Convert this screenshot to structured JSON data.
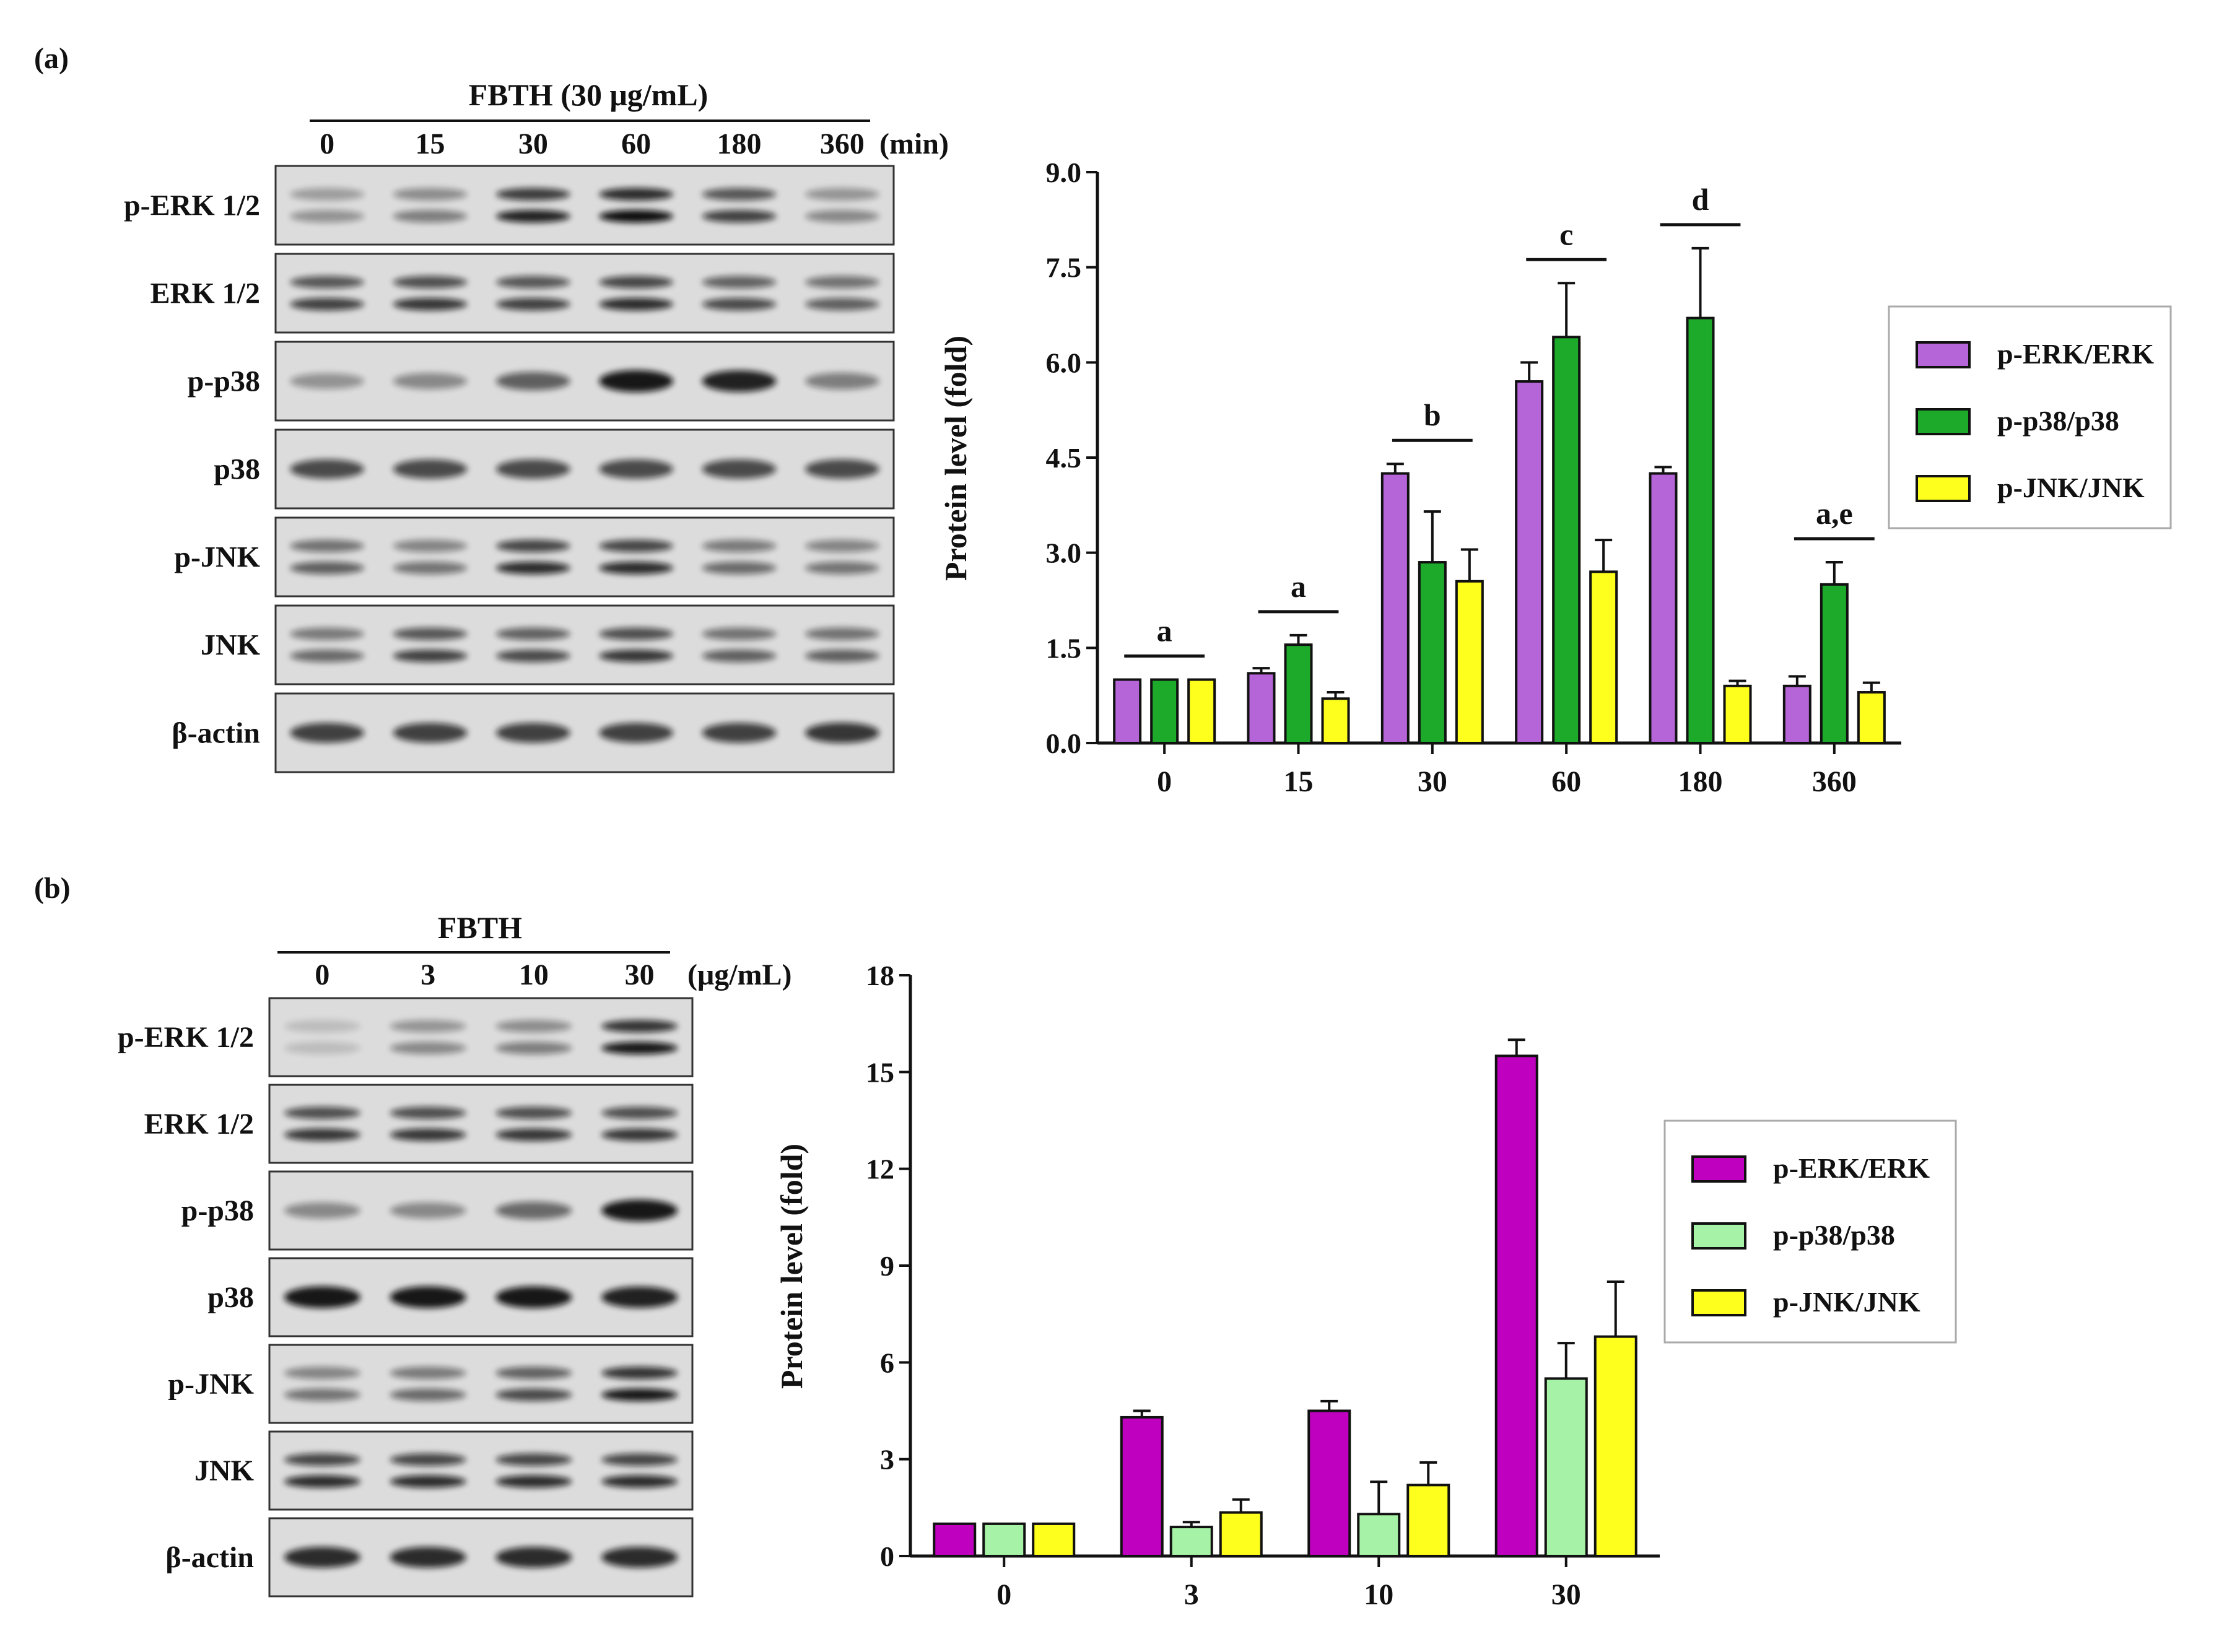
{
  "panels": {
    "a": {
      "label": "(a)",
      "blot": {
        "treatment": "FBTH (30 μg/mL)",
        "lanes": [
          "0",
          "15",
          "30",
          "60",
          "180",
          "360"
        ],
        "unit": "(min)",
        "rows": [
          "p-ERK 1/2",
          "ERK 1/2",
          "p-p38",
          "p38",
          "p-JNK",
          "JNK",
          "β-actin"
        ],
        "intensity": [
          [
            0.35,
            0.45,
            0.9,
            1.0,
            0.75,
            0.4
          ],
          [
            0.75,
            0.8,
            0.75,
            0.85,
            0.7,
            0.6
          ],
          [
            0.35,
            0.4,
            0.6,
            0.95,
            0.9,
            0.45
          ],
          [
            0.7,
            0.7,
            0.7,
            0.7,
            0.7,
            0.7
          ],
          [
            0.6,
            0.5,
            0.85,
            0.85,
            0.55,
            0.5
          ],
          [
            0.55,
            0.75,
            0.7,
            0.8,
            0.6,
            0.6
          ],
          [
            0.75,
            0.75,
            0.75,
            0.75,
            0.75,
            0.8
          ]
        ],
        "double_band": [
          true,
          true,
          false,
          false,
          true,
          true,
          false
        ]
      }
    },
    "b": {
      "label": "(b)",
      "blot": {
        "treatment": "FBTH",
        "lanes": [
          "0",
          "3",
          "10",
          "30"
        ],
        "unit": "(μg/mL)",
        "rows": [
          "p-ERK 1/2",
          "ERK 1/2",
          "p-p38",
          "p38",
          "p-JNK",
          "JNK",
          "β-actin"
        ],
        "intensity": [
          [
            0.15,
            0.4,
            0.45,
            0.95
          ],
          [
            0.8,
            0.8,
            0.8,
            0.8
          ],
          [
            0.4,
            0.4,
            0.55,
            0.95
          ],
          [
            0.95,
            0.95,
            0.95,
            0.9
          ],
          [
            0.5,
            0.55,
            0.7,
            0.95
          ],
          [
            0.85,
            0.85,
            0.85,
            0.85
          ],
          [
            0.85,
            0.85,
            0.85,
            0.85
          ]
        ],
        "double_band": [
          true,
          true,
          false,
          false,
          true,
          true,
          false
        ]
      }
    }
  },
  "chart_data": [
    {
      "type": "bar",
      "panel": "a",
      "categories": [
        "0",
        "15",
        "30",
        "60",
        "180",
        "360"
      ],
      "series": [
        {
          "name": "p-ERK/ERK",
          "color": "#B565D8",
          "values": [
            1.0,
            1.1,
            4.25,
            5.7,
            4.25,
            0.9
          ],
          "errors": [
            0.0,
            0.08,
            0.15,
            0.3,
            0.1,
            0.15
          ]
        },
        {
          "name": "p-p38/p38",
          "color": "#1DAA2B",
          "values": [
            1.0,
            1.55,
            2.85,
            6.4,
            6.7,
            2.5
          ],
          "errors": [
            0.0,
            0.15,
            0.8,
            0.85,
            1.1,
            0.35
          ]
        },
        {
          "name": "p-JNK/JNK",
          "color": "#FFFF1E",
          "values": [
            1.0,
            0.7,
            2.55,
            2.7,
            0.9,
            0.8
          ],
          "errors": [
            0.0,
            0.1,
            0.5,
            0.5,
            0.08,
            0.15
          ]
        }
      ],
      "ylabel": "Protein level (fold)",
      "xlabel": "",
      "ylim": [
        0,
        9.0
      ],
      "yticks": [
        "0.0",
        "1.5",
        "3.0",
        "4.5",
        "6.0",
        "7.5",
        "9.0"
      ],
      "significance": [
        "a",
        "a",
        "b",
        "c",
        "d",
        "a,e"
      ],
      "legend_position": "right"
    },
    {
      "type": "bar",
      "panel": "b",
      "categories": [
        "0",
        "3",
        "10",
        "30"
      ],
      "series": [
        {
          "name": "p-ERK/ERK",
          "color": "#BF00BF",
          "values": [
            1.0,
            4.3,
            4.5,
            15.5
          ],
          "errors": [
            0.0,
            0.2,
            0.3,
            0.5
          ]
        },
        {
          "name": "p-p38/p38",
          "color": "#A6F2A6",
          "values": [
            1.0,
            0.9,
            1.3,
            5.5
          ],
          "errors": [
            0.0,
            0.15,
            1.0,
            1.1
          ]
        },
        {
          "name": "p-JNK/JNK",
          "color": "#FFFF1E",
          "values": [
            1.0,
            1.35,
            2.2,
            6.8
          ],
          "errors": [
            0.0,
            0.4,
            0.7,
            1.7
          ]
        }
      ],
      "ylabel": "Protein level (fold)",
      "xlabel": "",
      "ylim": [
        0,
        18
      ],
      "yticks": [
        "0",
        "3",
        "6",
        "9",
        "12",
        "15",
        "18"
      ],
      "legend_position": "right"
    }
  ]
}
